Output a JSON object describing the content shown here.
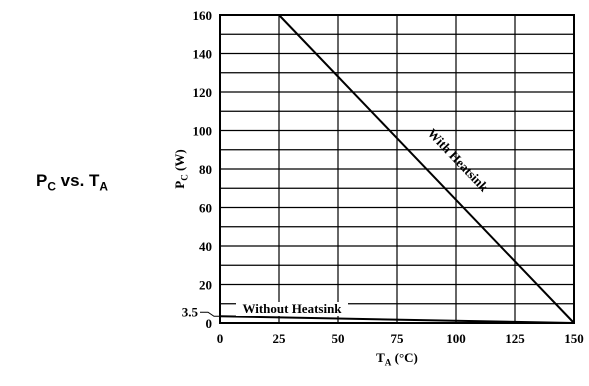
{
  "chart_data": {
    "type": "line",
    "title_parts": [
      "P",
      "C",
      " vs. T",
      "A"
    ],
    "xlabel_parts": [
      "T",
      "A",
      " (°C)"
    ],
    "ylabel_parts": [
      "P",
      "C",
      " (W)"
    ],
    "xlim": [
      0,
      150
    ],
    "ylim": [
      0,
      160
    ],
    "xticks": [
      0,
      25,
      50,
      75,
      100,
      125,
      150
    ],
    "yticks": [
      0,
      3.5,
      20,
      40,
      60,
      80,
      100,
      120,
      140,
      160
    ],
    "xgrid": [
      25,
      50,
      75,
      100,
      125
    ],
    "ygrid": [
      10,
      20,
      30,
      40,
      50,
      60,
      70,
      80,
      90,
      100,
      110,
      120,
      130,
      140,
      150
    ],
    "series": [
      {
        "name": "With Heatsink",
        "color": "#000000",
        "x": [
          25,
          150
        ],
        "values": [
          160,
          0
        ]
      },
      {
        "name": "Without Heatsink",
        "color": "#000000",
        "x": [
          0,
          150
        ],
        "values": [
          3.5,
          0
        ]
      }
    ]
  }
}
